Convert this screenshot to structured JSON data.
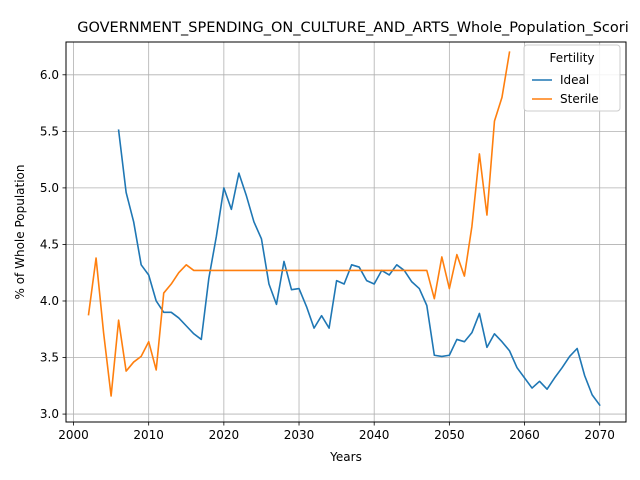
{
  "chart_data": {
    "type": "line",
    "title": "GOVERNMENT_SPENDING_ON_CULTURE_AND_ARTS_Whole_Population_Scori",
    "xlabel": "Years",
    "ylabel": "% of Whole Population",
    "xlim": [
      1999,
      2073.5
    ],
    "ylim": [
      2.93,
      6.29
    ],
    "xticks": [
      2000,
      2010,
      2020,
      2030,
      2040,
      2050,
      2060,
      2070
    ],
    "yticks": [
      3.0,
      3.5,
      4.0,
      4.5,
      5.0,
      5.5,
      6.0
    ],
    "grid": true,
    "legend": {
      "title": "Fertility",
      "placement": "top-right"
    },
    "series": [
      {
        "name": "Ideal",
        "color": "#1f77b4",
        "x": [
          2006,
          2007,
          2008,
          2009,
          2010,
          2011,
          2012,
          2013,
          2014,
          2015,
          2016,
          2017,
          2018,
          2019,
          2020,
          2021,
          2022,
          2023,
          2024,
          2025,
          2026,
          2027,
          2028,
          2029,
          2030,
          2031,
          2032,
          2033,
          2034,
          2035,
          2036,
          2037,
          2038,
          2039,
          2040,
          2041,
          2042,
          2043,
          2044,
          2045,
          2046,
          2047,
          2048,
          2049,
          2050,
          2051,
          2052,
          2053,
          2054,
          2055,
          2056,
          2057,
          2058,
          2059,
          2060,
          2061,
          2062,
          2063,
          2064,
          2065,
          2066,
          2067,
          2068,
          2069,
          2070
        ],
        "y": [
          5.51,
          4.96,
          4.7,
          4.32,
          4.23,
          4.0,
          3.9,
          3.9,
          3.85,
          3.78,
          3.71,
          3.66,
          4.2,
          4.57,
          5.0,
          4.81,
          5.13,
          4.93,
          4.7,
          4.55,
          4.15,
          3.97,
          4.35,
          4.1,
          4.11,
          3.95,
          3.76,
          3.87,
          3.76,
          4.18,
          4.15,
          4.32,
          4.3,
          4.18,
          4.15,
          4.27,
          4.23,
          4.32,
          4.27,
          4.17,
          4.11,
          3.96,
          3.52,
          3.51,
          3.52,
          3.66,
          3.64,
          3.72,
          3.89,
          3.59,
          3.71,
          3.64,
          3.56,
          3.41,
          3.32,
          3.23,
          3.29,
          3.22,
          3.32,
          3.41,
          3.51,
          3.58,
          3.34,
          3.17,
          3.08
        ]
      },
      {
        "name": "Sterile",
        "color": "#ff7f0e",
        "x": [
          2002,
          2003,
          2004,
          2005,
          2006,
          2007,
          2008,
          2009,
          2010,
          2011,
          2012,
          2013,
          2014,
          2015,
          2016,
          2017,
          2018,
          2019,
          2020,
          2021,
          2022,
          2023,
          2024,
          2025,
          2026,
          2027,
          2028,
          2029,
          2030,
          2031,
          2032,
          2033,
          2034,
          2035,
          2036,
          2037,
          2038,
          2039,
          2040,
          2041,
          2042,
          2043,
          2044,
          2045,
          2046,
          2047,
          2048,
          2049,
          2050,
          2051,
          2052,
          2053,
          2054,
          2055,
          2056,
          2057,
          2058
        ],
        "y": [
          3.88,
          4.38,
          3.72,
          3.16,
          3.83,
          3.38,
          3.46,
          3.51,
          3.64,
          3.39,
          4.07,
          4.15,
          4.25,
          4.32,
          4.27,
          4.27,
          4.27,
          4.27,
          4.27,
          4.27,
          4.27,
          4.27,
          4.27,
          4.27,
          4.27,
          4.27,
          4.27,
          4.27,
          4.27,
          4.27,
          4.27,
          4.27,
          4.27,
          4.27,
          4.27,
          4.27,
          4.27,
          4.27,
          4.27,
          4.27,
          4.27,
          4.27,
          4.27,
          4.27,
          4.27,
          4.27,
          4.02,
          4.39,
          4.11,
          4.41,
          4.22,
          4.66,
          5.3,
          4.76,
          5.59,
          5.8,
          6.2
        ]
      }
    ]
  }
}
